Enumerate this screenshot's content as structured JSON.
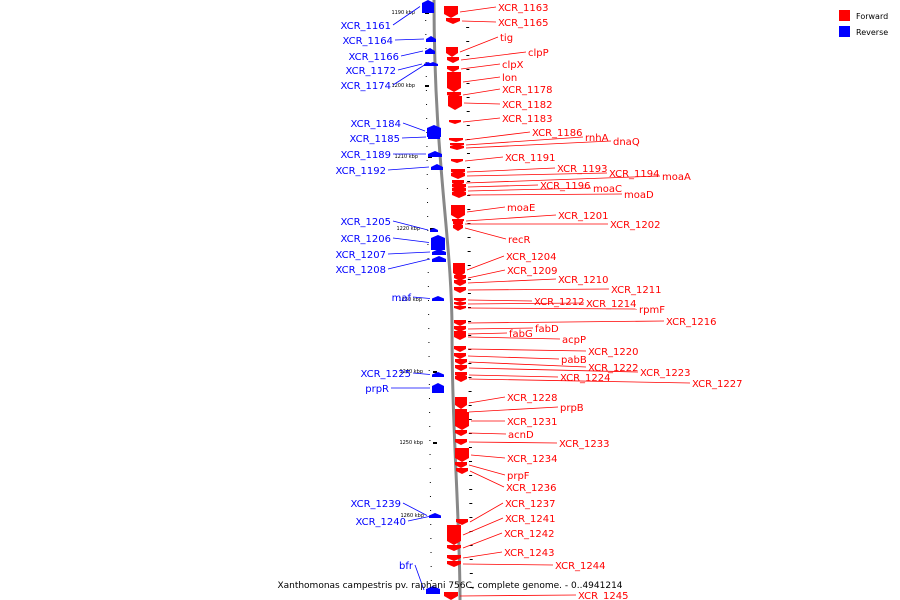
{
  "caption": "Xanthomonas campestris pv. raphani 756C, complete genome. - 0..4941214",
  "legend": {
    "forward_label": "Forward",
    "reverse_label": "Reverse",
    "forward_color": "#ff0000",
    "reverse_color": "#0000ff"
  },
  "scale_ticks": [
    "1190 kbp",
    "1200 kbp",
    "1210 kbp",
    "1220 kbp",
    "1230 kbp",
    "1240 kbp",
    "1250 kbp",
    "1260 kbp"
  ],
  "reverse_genes": [
    "XCR_1161",
    "XCR_1164",
    "XCR_1166",
    "XCR_1172",
    "XCR_1174",
    "XCR_1184",
    "XCR_1185",
    "XCR_1189",
    "XCR_1192",
    "XCR_1205",
    "XCR_1206",
    "XCR_1207",
    "XCR_1208",
    "maf",
    "XCR_1225",
    "prpR",
    "XCR_1239",
    "XCR_1240",
    "bfr"
  ],
  "forward_genes": [
    "XCR_1163",
    "XCR_1165",
    "tig",
    "clpP",
    "clpX",
    "lon",
    "XCR_1178",
    "XCR_1182",
    "XCR_1183",
    "XCR_1186",
    "rnhA",
    "dnaQ",
    "XCR_1191",
    "XCR_1193",
    "XCR_1194",
    "moaA",
    "XCR_1196",
    "moaC",
    "moaD",
    "moaE",
    "XCR_1201",
    "XCR_1202",
    "recR",
    "XCR_1204",
    "XCR_1209",
    "XCR_1210",
    "XCR_1211",
    "XCR_1212",
    "XCR_1214",
    "rpmF",
    "XCR_1216",
    "fabD",
    "fabG",
    "acpP",
    "XCR_1220",
    "pabB",
    "XCR_1222",
    "XCR_1223",
    "XCR_1224",
    "XCR_1227",
    "XCR_1228",
    "prpB",
    "XCR_1231",
    "acnD",
    "XCR_1233",
    "XCR_1234",
    "prpF",
    "XCR_1236",
    "XCR_1237",
    "XCR_1241",
    "XCR_1242",
    "XCR_1243",
    "XCR_1244",
    "XCR_1245"
  ]
}
